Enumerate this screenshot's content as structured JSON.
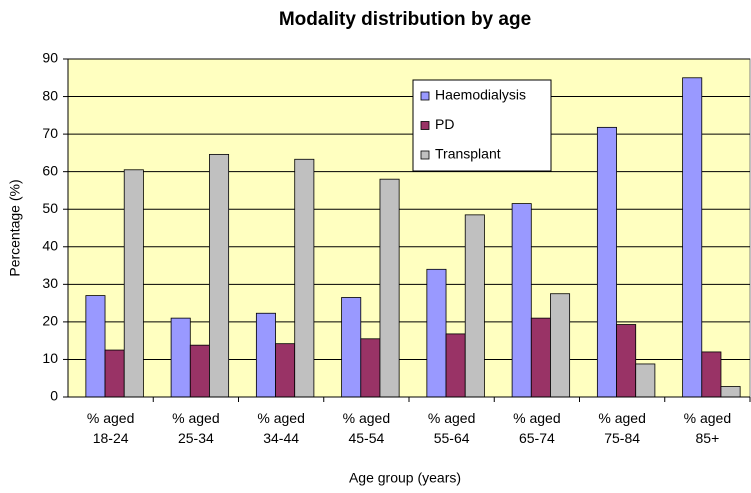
{
  "chart_data": {
    "type": "bar",
    "title": "Modality distribution by age",
    "x_label": "Age group (years)",
    "y_label": "Percentage (%)",
    "categories": [
      "% aged\n18-24",
      "% aged\n25-34",
      "% aged\n34-44",
      "% aged\n45-54",
      "% aged\n55-64",
      "% aged\n65-74",
      "% aged\n75-84",
      "% aged\n85+"
    ],
    "series": [
      {
        "name": "Haemodialysis",
        "color": "#9999ff",
        "values": [
          27,
          21,
          22.3,
          26.5,
          34,
          51.5,
          71.8,
          85
        ]
      },
      {
        "name": "PD",
        "color": "#993366",
        "values": [
          12.5,
          13.8,
          14.2,
          15.5,
          16.8,
          21,
          19.3,
          12
        ]
      },
      {
        "name": "Transplant",
        "color": "#c0c0c0",
        "values": [
          60.5,
          64.6,
          63.3,
          58,
          48.5,
          27.5,
          8.8,
          2.8
        ]
      }
    ],
    "ylim": [
      0,
      90
    ],
    "yticks": [
      0,
      10,
      20,
      30,
      40,
      50,
      60,
      70,
      80,
      90
    ],
    "grid": true,
    "legend": "upper center"
  }
}
